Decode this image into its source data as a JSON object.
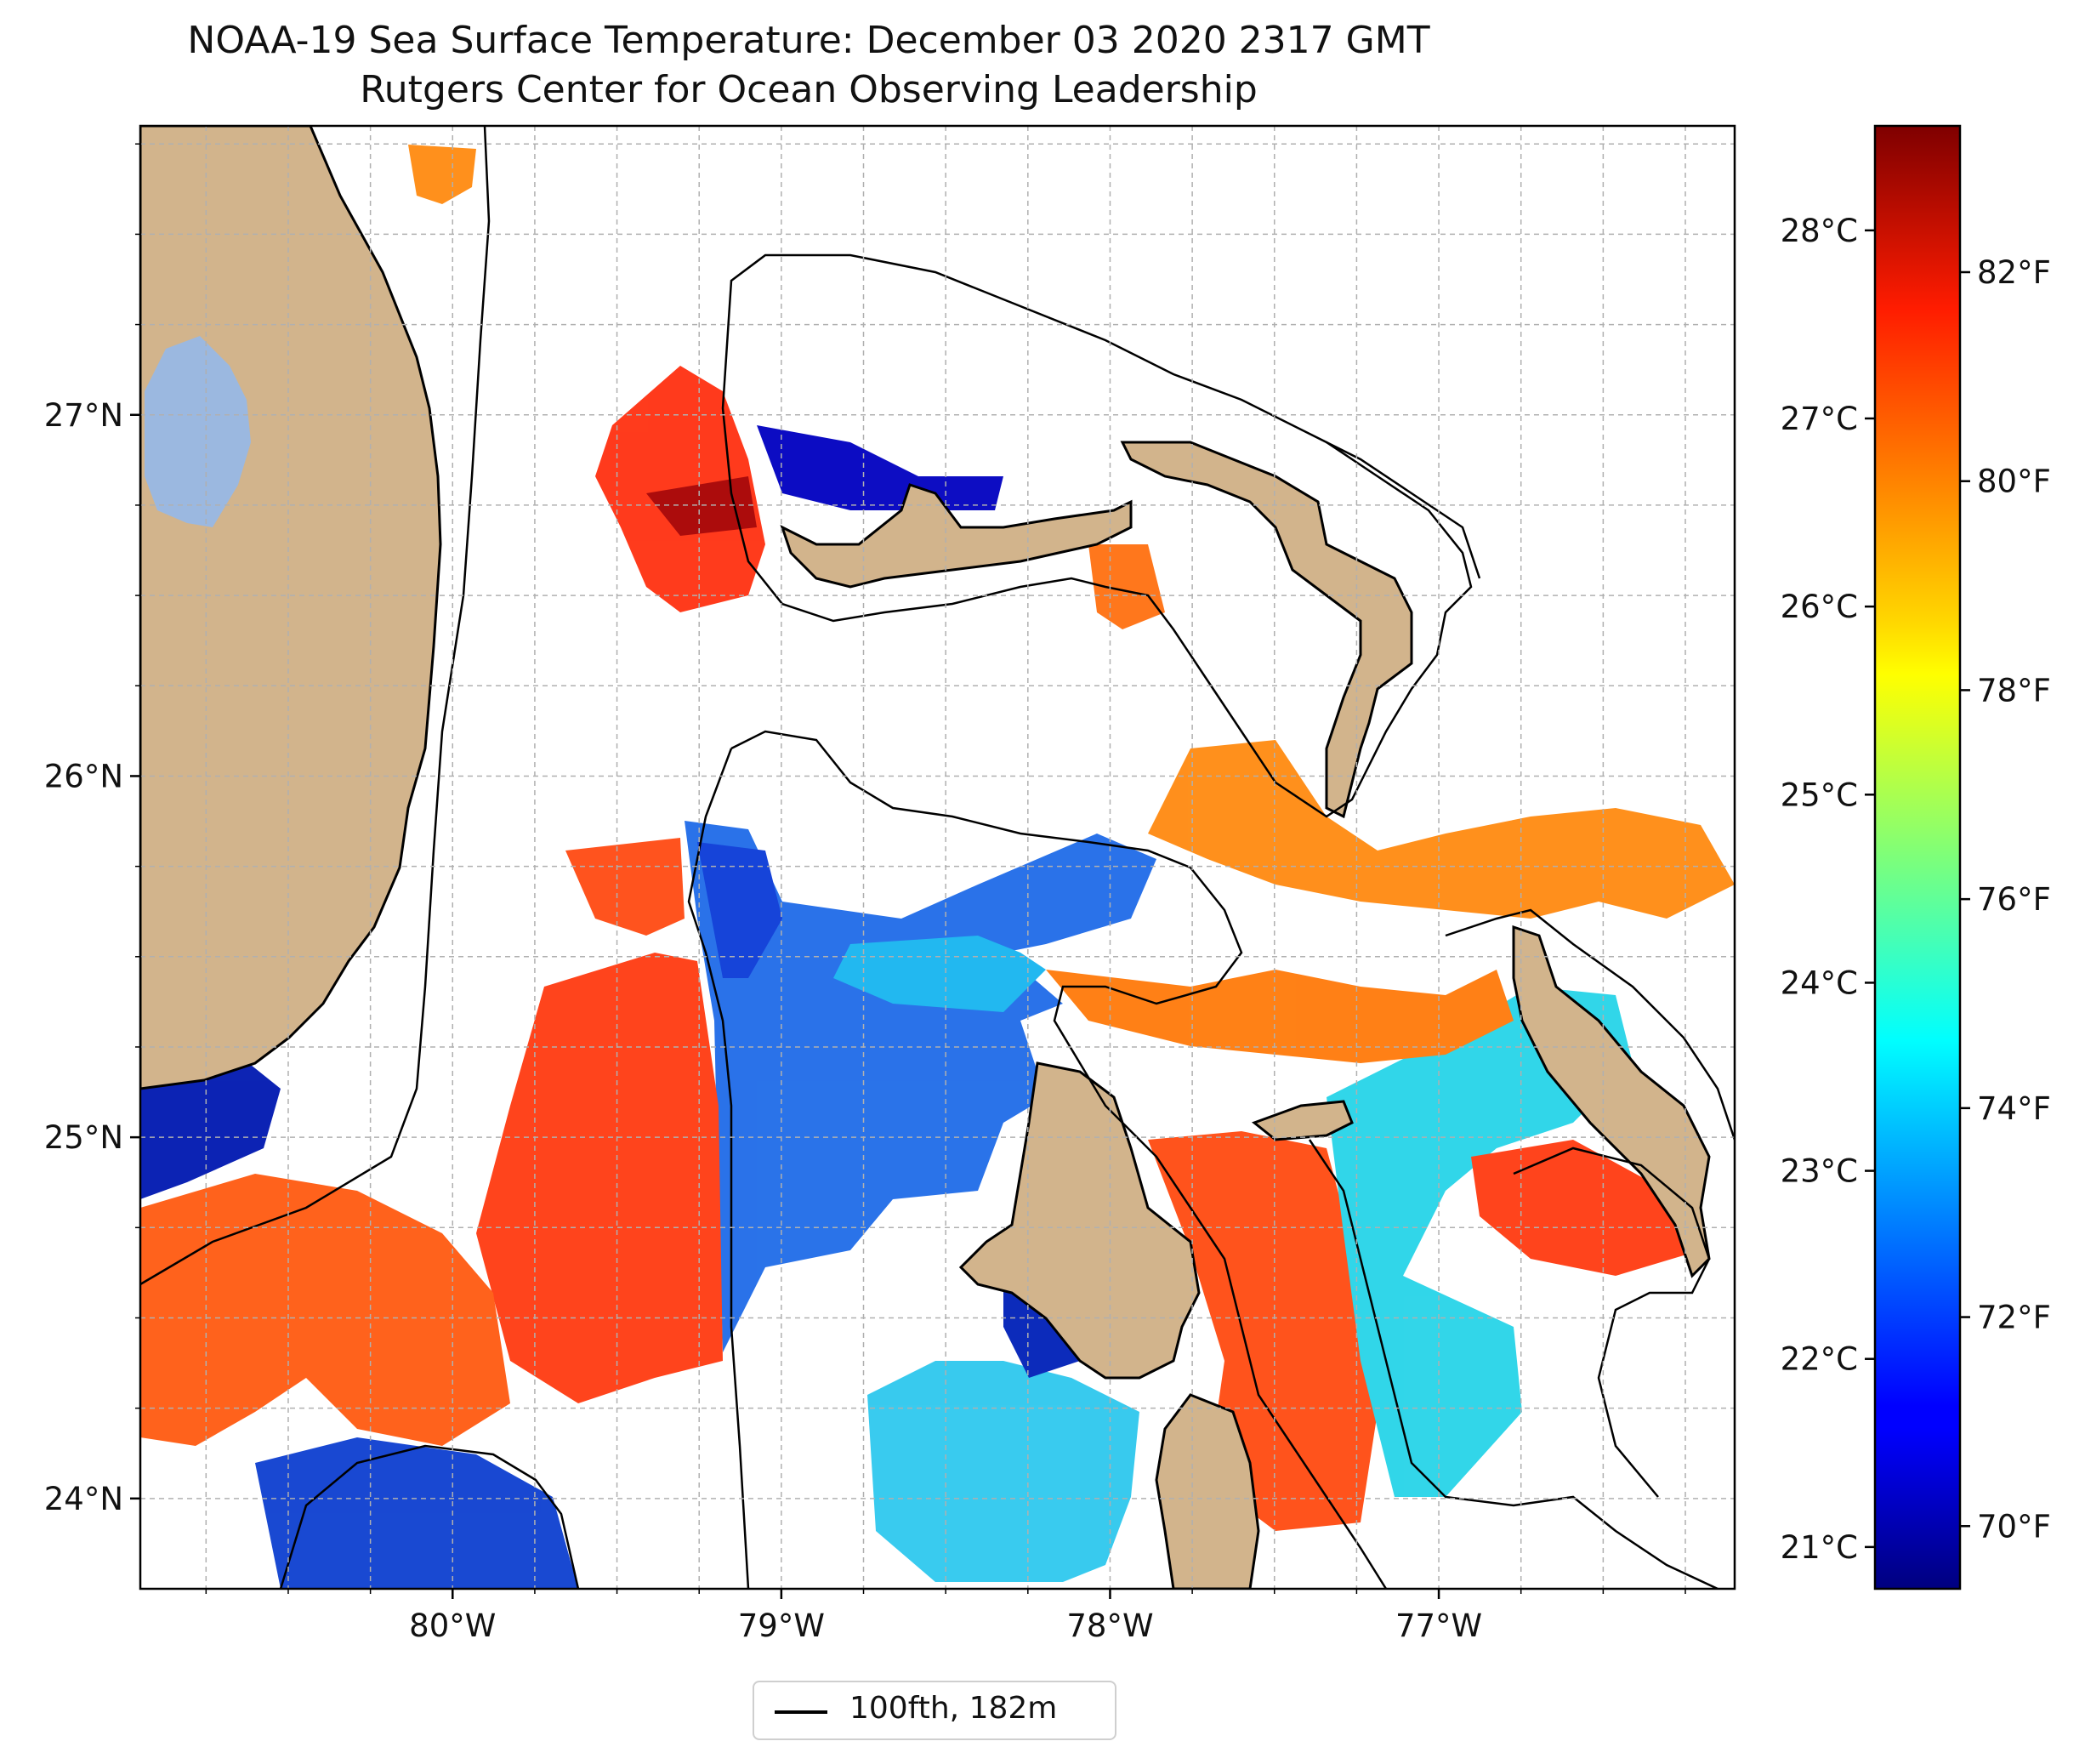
{
  "title": "NOAA-19 Sea Surface Temperature: December 03 2020 2317 GMT",
  "subtitle": "Rutgers Center for Ocean Observing Leadership",
  "map": {
    "lon_range": [
      -80.95,
      -76.1
    ],
    "lat_range": [
      23.75,
      27.8
    ],
    "lon_ticks": [
      {
        "value": -80,
        "label": "80°W"
      },
      {
        "value": -79,
        "label": "79°W"
      },
      {
        "value": -78,
        "label": "78°W"
      },
      {
        "value": -77,
        "label": "77°W"
      }
    ],
    "lat_ticks": [
      {
        "value": 24,
        "label": "24°N"
      },
      {
        "value": 25,
        "label": "25°N"
      },
      {
        "value": 26,
        "label": "26°N"
      },
      {
        "value": 27,
        "label": "27°N"
      }
    ],
    "gridlines": true,
    "colors": {
      "land": "#d2b48c",
      "lake": "#9bb8e0",
      "coastline": "#000000",
      "grid": "#b0b0b0"
    }
  },
  "colorbar": {
    "colormap": "jet",
    "range_F": [
      69.4,
      83.4
    ],
    "celsius_ticks": [
      {
        "value": 21,
        "label": "21°C"
      },
      {
        "value": 22,
        "label": "22°C"
      },
      {
        "value": 23,
        "label": "23°C"
      },
      {
        "value": 24,
        "label": "24°C"
      },
      {
        "value": 25,
        "label": "25°C"
      },
      {
        "value": 26,
        "label": "26°C"
      },
      {
        "value": 27,
        "label": "27°C"
      },
      {
        "value": 28,
        "label": "28°C"
      }
    ],
    "fahrenheit_ticks": [
      {
        "value": 70,
        "label": "70°F"
      },
      {
        "value": 72,
        "label": "72°F"
      },
      {
        "value": 74,
        "label": "74°F"
      },
      {
        "value": 76,
        "label": "76°F"
      },
      {
        "value": 78,
        "label": "78°F"
      },
      {
        "value": 80,
        "label": "80°F"
      },
      {
        "value": 82,
        "label": "82°F"
      }
    ]
  },
  "legend": {
    "label": "100fth, 182m",
    "line_color": "#000000"
  }
}
